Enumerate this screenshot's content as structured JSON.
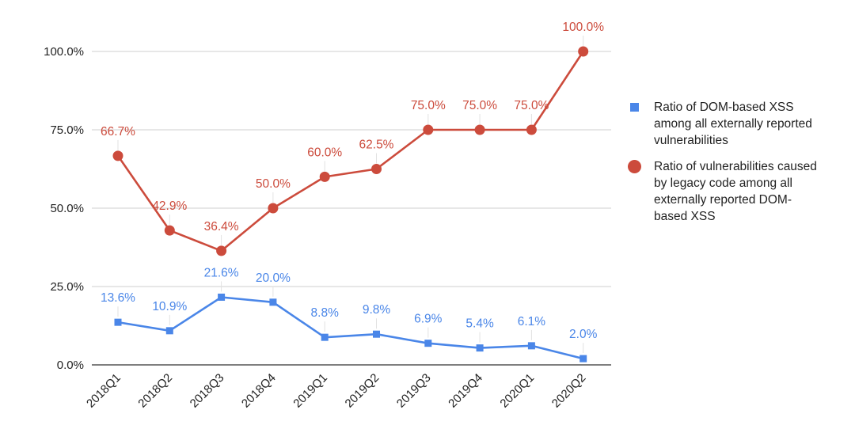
{
  "chart_data": {
    "type": "line",
    "title": "",
    "xlabel": "",
    "ylabel": "",
    "ylim": [
      0,
      100
    ],
    "yticks": [
      0,
      25,
      50,
      75,
      100
    ],
    "ytick_labels": [
      "0.0%",
      "25.0%",
      "50.0%",
      "75.0%",
      "100.0%"
    ],
    "categories": [
      "2018Q1",
      "2018Q2",
      "2018Q3",
      "2018Q4",
      "2019Q1",
      "2019Q2",
      "2019Q3",
      "2019Q4",
      "2020Q1",
      "2020Q2"
    ],
    "grid": true,
    "legend_position": "right",
    "series": [
      {
        "name": "Ratio of DOM-based XSS among all externally reported vulnerabilities",
        "color": "#4a86e8",
        "marker": "square",
        "values": [
          13.6,
          10.9,
          21.6,
          20.0,
          8.8,
          9.8,
          6.9,
          5.4,
          6.1,
          2.0
        ],
        "labels": [
          "13.6%",
          "10.9%",
          "21.6%",
          "20.0%",
          "8.8%",
          "9.8%",
          "6.9%",
          "5.4%",
          "6.1%",
          "2.0%"
        ]
      },
      {
        "name": "Ratio of vulnerabilities caused by legacy code among all externally reported DOM-based XSS",
        "color": "#cc4b3c",
        "marker": "circle",
        "values": [
          66.7,
          42.9,
          36.4,
          50.0,
          60.0,
          62.5,
          75.0,
          75.0,
          75.0,
          100.0
        ],
        "labels": [
          "66.7%",
          "42.9%",
          "36.4%",
          "50.0%",
          "60.0%",
          "62.5%",
          "75.0%",
          "75.0%",
          "75.0%",
          "100.0%"
        ]
      }
    ]
  }
}
